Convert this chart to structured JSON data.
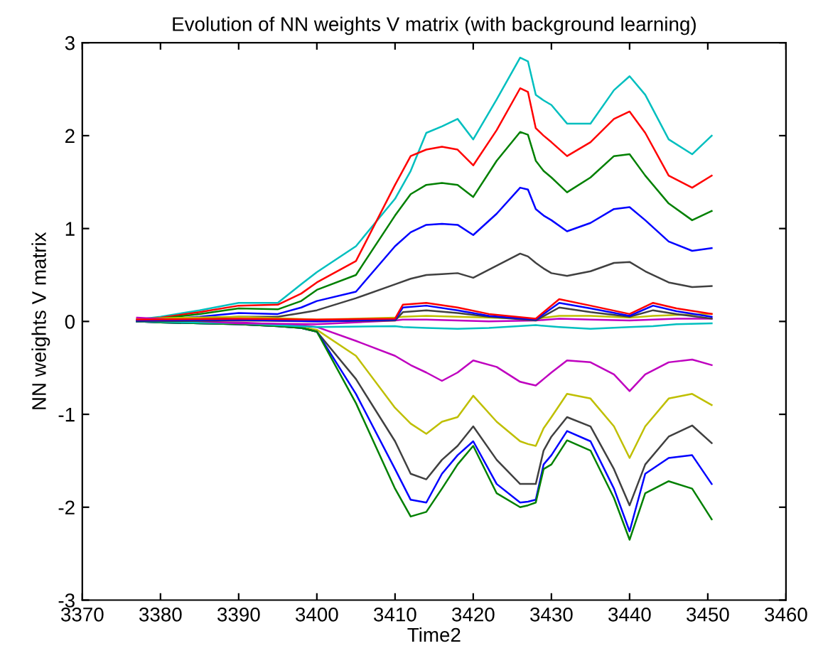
{
  "chart_data": {
    "type": "line",
    "title": "Evolution of NN weights V matrix (with background learning)",
    "xlabel": "Time2",
    "ylabel": "NN weights V matrix",
    "x": [
      3377,
      3380,
      3385,
      3390,
      3395,
      3398,
      3400,
      3405,
      3410,
      3412,
      3414,
      3416,
      3418,
      3420,
      3423,
      3426,
      3427,
      3428,
      3429,
      3430,
      3432,
      3435,
      3438,
      3440,
      3442,
      3445,
      3448,
      3450.5
    ],
    "xlim": [
      3370,
      3460
    ],
    "xticks": [
      3370,
      3380,
      3390,
      3400,
      3410,
      3420,
      3430,
      3440,
      3450,
      3460
    ],
    "ylim": [
      -3,
      3
    ],
    "yticks": [
      -3,
      -2,
      -1,
      0,
      1,
      2,
      3
    ],
    "grid": false,
    "marker": "none",
    "line_style": "solid",
    "series": [
      {
        "color": "#00bfbf",
        "values": [
          0.02,
          0.05,
          0.12,
          0.2,
          0.2,
          0.4,
          0.53,
          0.81,
          1.32,
          1.62,
          2.03,
          2.1,
          2.18,
          1.96,
          2.39,
          2.84,
          2.8,
          2.44,
          2.38,
          2.33,
          2.13,
          2.13,
          2.49,
          2.64,
          2.44,
          1.96,
          1.8,
          2.0
        ]
      },
      {
        "color": "#ff0000",
        "values": [
          0.02,
          0.04,
          0.1,
          0.17,
          0.18,
          0.3,
          0.42,
          0.65,
          1.47,
          1.78,
          1.85,
          1.88,
          1.85,
          1.68,
          2.06,
          2.51,
          2.47,
          2.08,
          2.0,
          1.93,
          1.78,
          1.93,
          2.18,
          2.26,
          2.03,
          1.57,
          1.44,
          1.57
        ]
      },
      {
        "color": "#008000",
        "values": [
          0.01,
          0.03,
          0.08,
          0.14,
          0.13,
          0.22,
          0.34,
          0.5,
          1.14,
          1.37,
          1.47,
          1.49,
          1.47,
          1.34,
          1.73,
          2.04,
          2.01,
          1.73,
          1.62,
          1.55,
          1.39,
          1.55,
          1.78,
          1.8,
          1.57,
          1.27,
          1.09,
          1.19
        ]
      },
      {
        "color": "#0000ff",
        "values": [
          0,
          0.02,
          0.05,
          0.09,
          0.08,
          0.15,
          0.22,
          0.32,
          0.81,
          0.96,
          1.04,
          1.05,
          1.04,
          0.93,
          1.16,
          1.44,
          1.42,
          1.21,
          1.14,
          1.09,
          0.97,
          1.06,
          1.21,
          1.23,
          1.09,
          0.86,
          0.76,
          0.79
        ]
      },
      {
        "color": "#404040",
        "values": [
          0,
          0.01,
          0.03,
          0.05,
          0.05,
          0.09,
          0.12,
          0.25,
          0.4,
          0.46,
          0.5,
          0.51,
          0.52,
          0.47,
          0.6,
          0.73,
          0.7,
          0.63,
          0.57,
          0.52,
          0.49,
          0.54,
          0.63,
          0.64,
          0.54,
          0.42,
          0.37,
          0.38
        ]
      },
      {
        "color": "#bf00bf",
        "values": [
          0.02,
          0,
          -0.01,
          -0.01,
          -0.03,
          -0.04,
          -0.06,
          -0.21,
          -0.37,
          -0.47,
          -0.55,
          -0.64,
          -0.55,
          -0.42,
          -0.49,
          -0.65,
          -0.67,
          -0.69,
          -0.62,
          -0.55,
          -0.42,
          -0.44,
          -0.57,
          -0.75,
          -0.57,
          -0.44,
          -0.41,
          -0.47
        ]
      },
      {
        "color": "#bfbf00",
        "values": [
          null,
          null,
          null,
          null,
          -0.05,
          -0.06,
          -0.09,
          -0.37,
          -0.93,
          -1.1,
          -1.21,
          -1.08,
          -1.03,
          -0.8,
          -1.08,
          -1.29,
          -1.32,
          -1.34,
          -1.15,
          -1.03,
          -0.78,
          -0.83,
          -1.13,
          -1.47,
          -1.13,
          -0.83,
          -0.78,
          -0.9
        ]
      },
      {
        "color": "#404040",
        "values": [
          0,
          -0.01,
          -0.02,
          -0.03,
          -0.05,
          -0.07,
          -0.11,
          -0.62,
          -1.29,
          -1.64,
          -1.7,
          -1.49,
          -1.34,
          -1.13,
          -1.49,
          -1.75,
          -1.75,
          -1.75,
          -1.39,
          -1.24,
          -1.03,
          -1.13,
          -1.59,
          -1.98,
          -1.54,
          -1.24,
          -1.12,
          -1.31
        ]
      },
      {
        "color": "#0000ff",
        "values": [
          0,
          -0.01,
          -0.02,
          -0.03,
          -0.05,
          -0.07,
          -0.11,
          -0.78,
          -1.59,
          -1.92,
          -1.95,
          -1.64,
          -1.44,
          -1.29,
          -1.75,
          -1.95,
          -1.94,
          -1.92,
          -1.54,
          -1.44,
          -1.18,
          -1.29,
          -1.8,
          -2.26,
          -1.64,
          -1.47,
          -1.44,
          -1.75
        ]
      },
      {
        "color": "#008000",
        "values": [
          0,
          -0.01,
          -0.02,
          -0.03,
          -0.05,
          -0.07,
          -0.11,
          -0.88,
          -1.8,
          -2.1,
          -2.05,
          -1.8,
          -1.54,
          -1.34,
          -1.85,
          -2.0,
          -1.98,
          -1.95,
          -1.59,
          -1.54,
          -1.28,
          -1.39,
          -1.9,
          -2.35,
          -1.85,
          -1.72,
          -1.8,
          -2.13
        ]
      },
      {
        "color": "#00bfbf",
        "x": [
          3377,
          3390,
          3400,
          3410,
          3411,
          3414,
          3418,
          3422,
          3428,
          3431,
          3435,
          3440,
          3443,
          3446,
          3450.5
        ],
        "values": [
          0,
          -0.02,
          -0.06,
          -0.05,
          -0.06,
          -0.07,
          -0.08,
          -0.07,
          -0.04,
          -0.06,
          -0.08,
          -0.06,
          -0.05,
          -0.03,
          -0.02
        ]
      },
      {
        "color": "#bfbf00",
        "x": [
          3377,
          3390,
          3400,
          3410,
          3411,
          3414,
          3418,
          3422,
          3428,
          3431,
          3435,
          3440,
          3443,
          3446,
          3450.5
        ],
        "values": [
          0.03,
          0.05,
          0.02,
          0.04,
          0.05,
          0.06,
          0.05,
          0.04,
          0.03,
          0.06,
          0.06,
          0.04,
          0.06,
          0.07,
          0.08
        ]
      },
      {
        "color": "#bf00bf",
        "x": [
          3377,
          3390,
          3400,
          3410,
          3411,
          3414,
          3418,
          3422,
          3428,
          3431,
          3435,
          3440,
          3443,
          3446,
          3450.5
        ],
        "values": [
          0.04,
          -0.02,
          -0.03,
          0.01,
          0.02,
          0.02,
          0.01,
          0.0,
          0.01,
          0.03,
          0.02,
          0.01,
          0.02,
          0.03,
          0.03
        ]
      },
      {
        "color": "#404040",
        "x": [
          3377,
          3390,
          3400,
          3410,
          3411,
          3414,
          3418,
          3422,
          3428,
          3431,
          3435,
          3440,
          3443,
          3446,
          3450.5
        ],
        "values": [
          0,
          0.01,
          0,
          0.01,
          0.1,
          0.12,
          0.09,
          0.05,
          0.01,
          0.15,
          0.1,
          0.05,
          0.12,
          0.08,
          0.03
        ]
      },
      {
        "color": "#0000ff",
        "x": [
          3377,
          3390,
          3400,
          3410,
          3411,
          3414,
          3418,
          3422,
          3428,
          3431,
          3435,
          3440,
          3443,
          3446,
          3450.5
        ],
        "values": [
          0.01,
          0.02,
          0.0,
          0.02,
          0.15,
          0.17,
          0.12,
          0.06,
          0.02,
          0.2,
          0.14,
          0.06,
          0.17,
          0.11,
          0.05
        ]
      },
      {
        "color": "#ff0000",
        "x": [
          3377,
          3390,
          3400,
          3410,
          3411,
          3414,
          3418,
          3422,
          3428,
          3431,
          3435,
          3440,
          3443,
          3446,
          3450.5
        ],
        "values": [
          0.02,
          0.03,
          0.02,
          0.03,
          0.18,
          0.2,
          0.15,
          0.08,
          0.03,
          0.24,
          0.17,
          0.08,
          0.2,
          0.14,
          0.08
        ]
      }
    ]
  }
}
